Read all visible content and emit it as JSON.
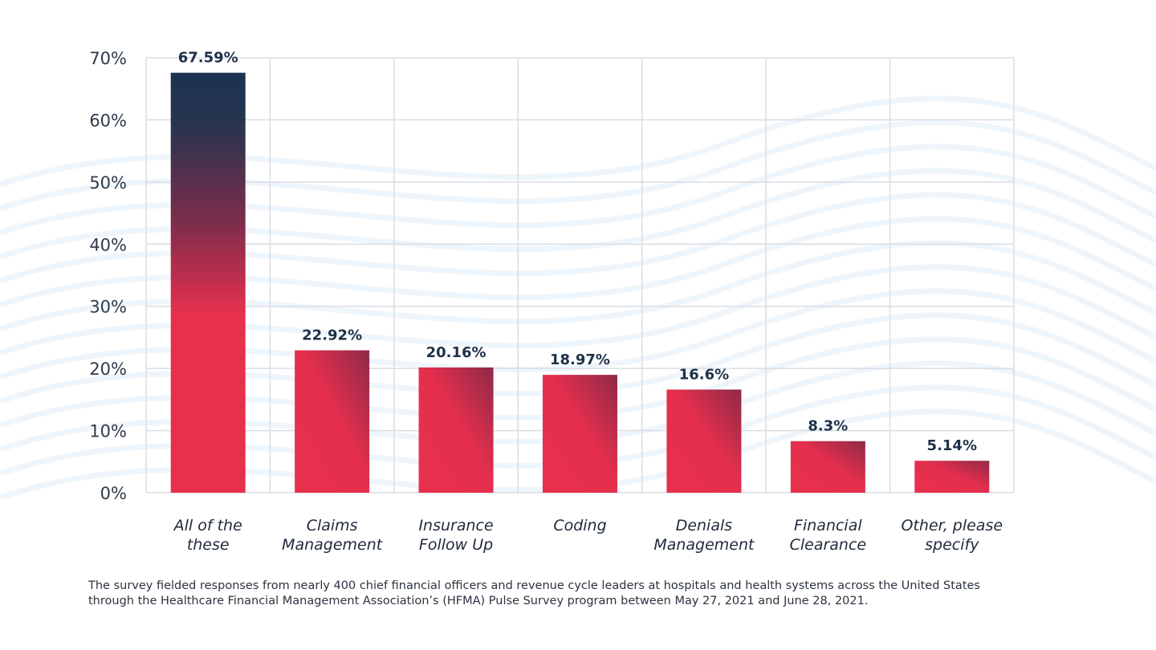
{
  "chart_data": {
    "type": "bar",
    "categories": [
      [
        "All of the",
        "these"
      ],
      [
        "Claims",
        "Management"
      ],
      [
        "Insurance",
        "Follow Up"
      ],
      [
        "Coding"
      ],
      [
        "Denials",
        "Management"
      ],
      [
        "Financial",
        "Clearance"
      ],
      [
        "Other, please",
        "specify"
      ]
    ],
    "values": [
      67.59,
      22.92,
      20.16,
      18.97,
      16.6,
      8.3,
      5.14
    ],
    "value_labels": [
      "67.59%",
      "22.92%",
      "20.16%",
      "18.97%",
      "16.6%",
      "8.3%",
      "5.14%"
    ],
    "yticks": [
      0,
      10,
      20,
      30,
      40,
      50,
      60,
      70
    ],
    "ytick_labels": [
      "0%",
      "10%",
      "20%",
      "30%",
      "40%",
      "50%",
      "60%",
      "70%"
    ],
    "ylim": [
      0,
      70
    ],
    "grid": true,
    "colors": {
      "bar_main": "#e8304d",
      "bar_dark": "#1d3350",
      "grid": "#d9dde3",
      "label": "#1f3149"
    }
  },
  "footnote": {
    "line1": "The survey fielded responses from nearly 400 chief financial officers and revenue cycle leaders at hospitals and health systems across the United States",
    "line2": "through the Healthcare Financial Management Association’s (HFMA) Pulse Survey program between May 27, 2021 and June 28, 2021."
  }
}
